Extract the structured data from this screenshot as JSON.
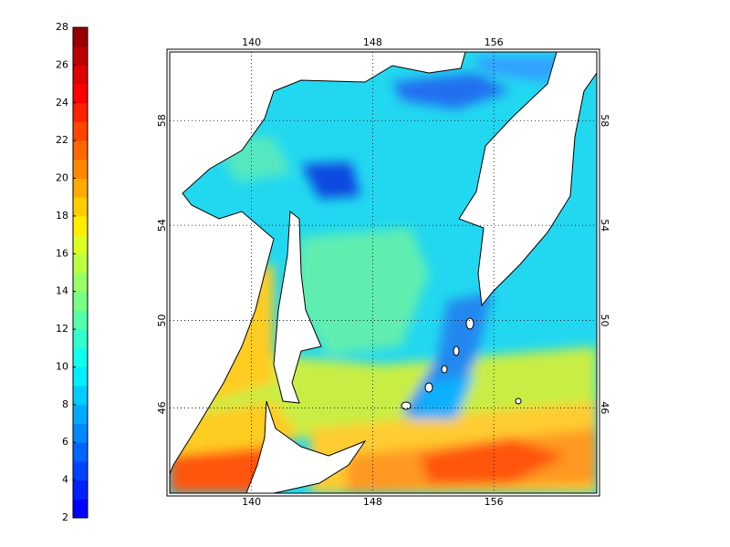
{
  "colorbar": {
    "lim": [
      2,
      28
    ],
    "ticks": [
      2,
      4,
      6,
      8,
      10,
      12,
      14,
      16,
      18,
      20,
      22,
      24,
      26,
      28
    ],
    "colors": [
      "#0000ff",
      "#0022ff",
      "#0044ff",
      "#0066ff",
      "#0088ff",
      "#00aaff",
      "#00ccff",
      "#00eeff",
      "#11ffee",
      "#33ffcc",
      "#55ffaa",
      "#77ff88",
      "#99ff66",
      "#bbff44",
      "#ddff22",
      "#ffee00",
      "#ffcc00",
      "#ffaa00",
      "#ff8800",
      "#ff6600",
      "#ff4400",
      "#ff2200",
      "#ff0000",
      "#dd0000",
      "#bb0000",
      "#990000"
    ]
  },
  "map": {
    "lon_lim": [
      134.6,
      162.8
    ],
    "lat_lim": [
      41.8,
      60.4
    ],
    "lon_ticks": [
      140,
      148,
      156
    ],
    "lat_ticks": [
      46,
      50,
      54,
      58
    ],
    "grid": true
  }
}
